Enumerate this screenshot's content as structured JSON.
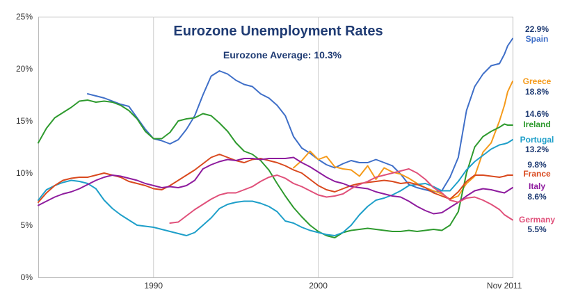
{
  "chart_data": {
    "type": "line",
    "title": "Eurozone Unemployment Rates",
    "subtitle": "Eurozone Average: 10.3%",
    "xlabel": "",
    "ylabel": "",
    "ylim": [
      0,
      25
    ],
    "xlim": [
      1983,
      2011.8
    ],
    "y_ticks": [
      "0%",
      "5%",
      "10%",
      "15%",
      "20%",
      "25%"
    ],
    "x_ticks": [
      "1990",
      "2000",
      "Nov 2011"
    ],
    "grid": "vertical",
    "series": [
      {
        "name": "Spain",
        "value_label": "22.9%",
        "color": "#3f6fc8",
        "x": [
          1986.0,
          1986.5,
          1987.0,
          1987.5,
          1988.0,
          1988.5,
          1989.0,
          1989.5,
          1990.0,
          1990.5,
          1991.0,
          1991.5,
          1992.0,
          1992.5,
          1993.0,
          1993.5,
          1994.0,
          1994.5,
          1995.0,
          1995.5,
          1996.0,
          1996.5,
          1997.0,
          1997.5,
          1998.0,
          1998.5,
          1999.0,
          1999.5,
          2000.0,
          2000.5,
          2001.0,
          2001.5,
          2002.0,
          2002.5,
          2003.0,
          2003.5,
          2004.0,
          2004.5,
          2005.0,
          2005.5,
          2006.0,
          2006.5,
          2007.0,
          2007.5,
          2008.0,
          2008.5,
          2009.0,
          2009.5,
          2010.0,
          2010.5,
          2011.0,
          2011.3,
          2011.5,
          2011.8
        ],
        "y": [
          17.6,
          17.4,
          17.2,
          16.9,
          16.6,
          16.4,
          15.3,
          14.2,
          13.3,
          13.1,
          12.8,
          13.2,
          14.2,
          15.5,
          17.5,
          19.3,
          19.8,
          19.5,
          18.9,
          18.5,
          18.3,
          17.6,
          17.2,
          16.5,
          15.5,
          13.5,
          12.4,
          11.9,
          11.3,
          10.8,
          10.5,
          10.9,
          11.2,
          11.0,
          11.0,
          11.3,
          11.0,
          10.7,
          9.9,
          8.9,
          8.6,
          8.4,
          8.2,
          8.3,
          9.6,
          11.5,
          16.0,
          18.3,
          19.5,
          20.3,
          20.5,
          21.4,
          22.2,
          22.9
        ]
      },
      {
        "name": "Greece",
        "value_label": "18.8%",
        "color": "#f59a1a",
        "x": [
          1998.5,
          1999.0,
          1999.5,
          2000.0,
          2000.5,
          2001.0,
          2001.5,
          2002.0,
          2002.5,
          2003.0,
          2003.5,
          2004.0,
          2004.5,
          2005.0,
          2005.5,
          2006.0,
          2006.5,
          2007.0,
          2007.5,
          2008.0,
          2008.5,
          2009.0,
          2009.5,
          2010.0,
          2010.5,
          2011.0,
          2011.3,
          2011.5,
          2011.8
        ],
        "y": [
          10.5,
          11.2,
          12.1,
          11.3,
          11.6,
          10.6,
          10.4,
          10.3,
          9.7,
          10.7,
          9.4,
          10.5,
          10.1,
          9.9,
          9.5,
          9.0,
          8.6,
          8.3,
          8.0,
          7.5,
          7.8,
          9.0,
          9.7,
          12.0,
          12.9,
          15.0,
          16.5,
          17.8,
          18.8
        ]
      },
      {
        "name": "Ireland",
        "value_label": "14.6%",
        "color": "#2e9a2e",
        "x": [
          1983.0,
          1983.5,
          1984.0,
          1984.5,
          1985.0,
          1985.5,
          1986.0,
          1986.5,
          1987.0,
          1987.5,
          1988.0,
          1988.5,
          1989.0,
          1989.5,
          1990.0,
          1990.5,
          1991.0,
          1991.5,
          1992.0,
          1992.5,
          1993.0,
          1993.5,
          1994.0,
          1994.5,
          1995.0,
          1995.5,
          1996.0,
          1996.5,
          1997.0,
          1997.5,
          1998.0,
          1998.5,
          1999.0,
          1999.5,
          2000.0,
          2000.5,
          2001.0,
          2001.5,
          2002.0,
          2002.5,
          2003.0,
          2003.5,
          2004.0,
          2004.5,
          2005.0,
          2005.5,
          2006.0,
          2006.5,
          2007.0,
          2007.5,
          2008.0,
          2008.5,
          2009.0,
          2009.5,
          2010.0,
          2010.5,
          2011.0,
          2011.3,
          2011.5,
          2011.8
        ],
        "y": [
          12.9,
          14.3,
          15.3,
          15.8,
          16.3,
          16.9,
          17.0,
          16.8,
          16.9,
          16.8,
          16.5,
          16.0,
          15.2,
          14.0,
          13.3,
          13.3,
          13.9,
          15.0,
          15.2,
          15.3,
          15.7,
          15.5,
          14.8,
          14.0,
          12.9,
          12.1,
          11.8,
          11.2,
          10.3,
          9.0,
          7.8,
          6.7,
          5.8,
          5.0,
          4.4,
          4.0,
          3.8,
          4.3,
          4.5,
          4.6,
          4.7,
          4.6,
          4.5,
          4.4,
          4.4,
          4.5,
          4.4,
          4.5,
          4.6,
          4.5,
          5.0,
          6.3,
          10.0,
          12.5,
          13.5,
          14.0,
          14.4,
          14.7,
          14.6,
          14.6
        ]
      },
      {
        "name": "Portugal",
        "value_label": "13.2%",
        "color": "#1e9fc9",
        "x": [
          1983.0,
          1983.5,
          1984.0,
          1984.5,
          1985.0,
          1985.5,
          1986.0,
          1986.5,
          1987.0,
          1987.5,
          1988.0,
          1988.5,
          1989.0,
          1989.5,
          1990.0,
          1990.5,
          1991.0,
          1991.5,
          1992.0,
          1992.5,
          1993.0,
          1993.5,
          1994.0,
          1994.5,
          1995.0,
          1995.5,
          1996.0,
          1996.5,
          1997.0,
          1997.5,
          1998.0,
          1998.5,
          1999.0,
          1999.5,
          2000.0,
          2000.5,
          2001.0,
          2001.5,
          2002.0,
          2002.5,
          2003.0,
          2003.5,
          2004.0,
          2004.5,
          2005.0,
          2005.5,
          2006.0,
          2006.5,
          2007.0,
          2007.5,
          2008.0,
          2008.5,
          2009.0,
          2009.5,
          2010.0,
          2010.5,
          2011.0,
          2011.3,
          2011.5,
          2011.8
        ],
        "y": [
          7.4,
          8.4,
          8.8,
          9.1,
          9.3,
          9.2,
          9.0,
          8.5,
          7.4,
          6.6,
          6.0,
          5.5,
          5.0,
          4.9,
          4.8,
          4.6,
          4.4,
          4.2,
          4.0,
          4.3,
          5.0,
          5.7,
          6.6,
          7.0,
          7.2,
          7.3,
          7.3,
          7.1,
          6.8,
          6.3,
          5.4,
          5.2,
          4.8,
          4.5,
          4.3,
          4.1,
          4.0,
          4.3,
          5.0,
          6.0,
          6.8,
          7.4,
          7.6,
          7.9,
          8.3,
          8.8,
          8.9,
          9.0,
          8.7,
          8.3,
          8.3,
          9.2,
          10.3,
          11.1,
          11.7,
          12.3,
          12.7,
          12.8,
          12.9,
          13.2
        ]
      },
      {
        "name": "France",
        "value_label": "9.8%",
        "color": "#d9491e",
        "x": [
          1983.0,
          1983.5,
          1984.0,
          1984.5,
          1985.0,
          1985.5,
          1986.0,
          1986.5,
          1987.0,
          1987.5,
          1988.0,
          1988.5,
          1989.0,
          1989.5,
          1990.0,
          1990.5,
          1991.0,
          1991.5,
          1992.0,
          1992.5,
          1993.0,
          1993.5,
          1994.0,
          1994.5,
          1995.0,
          1995.5,
          1996.0,
          1996.5,
          1997.0,
          1997.5,
          1998.0,
          1998.5,
          1999.0,
          1999.5,
          2000.0,
          2000.5,
          2001.0,
          2001.5,
          2002.0,
          2002.5,
          2003.0,
          2003.5,
          2004.0,
          2004.5,
          2005.0,
          2005.5,
          2006.0,
          2006.5,
          2007.0,
          2007.5,
          2008.0,
          2008.5,
          2009.0,
          2009.5,
          2010.0,
          2010.5,
          2011.0,
          2011.3,
          2011.5,
          2011.8
        ],
        "y": [
          7.2,
          8.1,
          8.8,
          9.3,
          9.5,
          9.6,
          9.6,
          9.8,
          10.0,
          9.8,
          9.6,
          9.2,
          9.0,
          8.8,
          8.5,
          8.4,
          8.8,
          9.3,
          9.8,
          10.3,
          10.9,
          11.5,
          11.8,
          11.5,
          11.2,
          11.0,
          11.3,
          11.4,
          11.2,
          11.0,
          10.7,
          10.3,
          10.0,
          9.4,
          8.8,
          8.4,
          8.2,
          8.5,
          8.8,
          9.0,
          9.1,
          9.2,
          9.3,
          9.2,
          9.0,
          9.1,
          8.9,
          8.6,
          8.1,
          7.8,
          7.5,
          8.2,
          9.2,
          9.8,
          9.8,
          9.7,
          9.6,
          9.7,
          9.8,
          9.8
        ]
      },
      {
        "name": "Italy",
        "value_label": "8.6%",
        "color": "#8e1c9e",
        "x": [
          1983.0,
          1983.5,
          1984.0,
          1984.5,
          1985.0,
          1985.5,
          1986.0,
          1986.5,
          1987.0,
          1987.5,
          1988.0,
          1988.5,
          1989.0,
          1989.5,
          1990.0,
          1990.5,
          1991.0,
          1991.5,
          1992.0,
          1992.5,
          1993.0,
          1993.5,
          1994.0,
          1994.5,
          1995.0,
          1995.5,
          1996.0,
          1996.5,
          1997.0,
          1997.5,
          1998.0,
          1998.5,
          1999.0,
          1999.5,
          2000.0,
          2000.5,
          2001.0,
          2001.5,
          2002.0,
          2002.5,
          2003.0,
          2003.5,
          2004.0,
          2004.5,
          2005.0,
          2005.5,
          2006.0,
          2006.5,
          2007.0,
          2007.5,
          2008.0,
          2008.5,
          2009.0,
          2009.5,
          2010.0,
          2010.5,
          2011.0,
          2011.3,
          2011.5,
          2011.8
        ],
        "y": [
          6.9,
          7.3,
          7.7,
          8.0,
          8.2,
          8.5,
          8.9,
          9.3,
          9.6,
          9.8,
          9.7,
          9.5,
          9.3,
          9.0,
          8.8,
          8.6,
          8.7,
          8.6,
          8.8,
          9.3,
          10.4,
          10.8,
          11.1,
          11.3,
          11.2,
          11.4,
          11.4,
          11.3,
          11.4,
          11.4,
          11.4,
          11.5,
          11.0,
          10.6,
          10.1,
          9.6,
          9.2,
          9.0,
          8.7,
          8.6,
          8.5,
          8.2,
          8.0,
          7.8,
          7.7,
          7.3,
          6.8,
          6.4,
          6.1,
          6.2,
          6.7,
          7.2,
          7.8,
          8.3,
          8.5,
          8.4,
          8.2,
          8.1,
          8.3,
          8.6
        ]
      },
      {
        "name": "Germany",
        "value_label": "5.5%",
        "color": "#e0507a",
        "x": [
          1991.0,
          1991.5,
          1992.0,
          1992.5,
          1993.0,
          1993.5,
          1994.0,
          1994.5,
          1995.0,
          1995.5,
          1996.0,
          1996.5,
          1997.0,
          1997.5,
          1998.0,
          1998.5,
          1999.0,
          1999.5,
          2000.0,
          2000.5,
          2001.0,
          2001.5,
          2002.0,
          2002.5,
          2003.0,
          2003.5,
          2004.0,
          2004.5,
          2005.0,
          2005.5,
          2006.0,
          2006.5,
          2007.0,
          2007.5,
          2008.0,
          2008.5,
          2009.0,
          2009.5,
          2010.0,
          2010.5,
          2011.0,
          2011.3,
          2011.5,
          2011.8
        ],
        "y": [
          5.2,
          5.3,
          5.9,
          6.5,
          7.0,
          7.5,
          7.9,
          8.1,
          8.1,
          8.4,
          8.7,
          9.2,
          9.6,
          9.8,
          9.5,
          9.0,
          8.7,
          8.3,
          7.9,
          7.7,
          7.8,
          8.0,
          8.5,
          8.9,
          9.2,
          9.6,
          9.8,
          10.0,
          10.2,
          10.4,
          10.0,
          9.4,
          8.6,
          8.1,
          7.4,
          7.2,
          7.6,
          7.7,
          7.4,
          7.0,
          6.5,
          6.0,
          5.8,
          5.5
        ]
      }
    ]
  }
}
